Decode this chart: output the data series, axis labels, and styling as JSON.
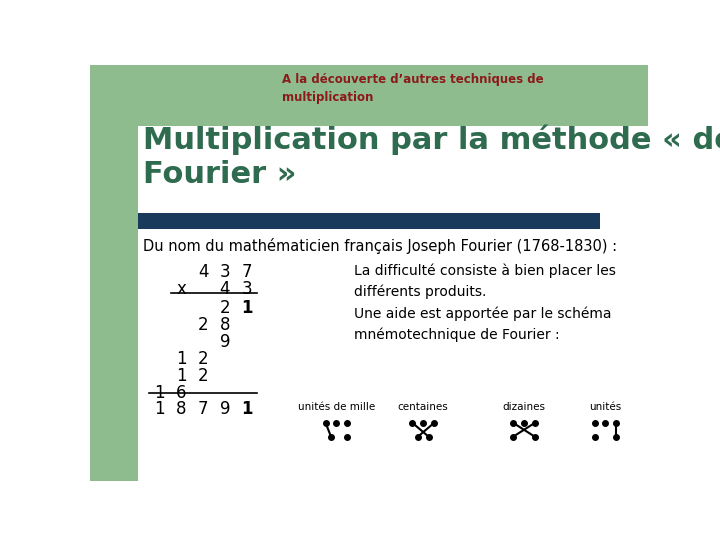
{
  "bg_color": "#ffffff",
  "left_bar_color": "#8fbc8f",
  "blue_bar_color": "#1a3a5c",
  "title_color": "#8b1a1a",
  "main_title": "Multiplication par la méthode « de\nFourier »",
  "subtitle": "A la d’couverte d’autres techniques de\nmultiplication",
  "body_text1": "Du nom du mathématicien français Joseph Fourier (1768-1830) :",
  "desc_text": "La difficulté consiste à bien placer les\ndifférents produits.\nUne aide est apportée par le schéma\nmnémotechnique de Fourier :",
  "label_unites_mille": "unités de mille",
  "label_centaines": "centaines",
  "label_dizaines": "dizaines",
  "label_unites": "unités",
  "main_title_color": "#2e6b4f",
  "body_color": "#000000",
  "subtitle_text": "A la découverte d’autres techniques de\nmultiplication"
}
